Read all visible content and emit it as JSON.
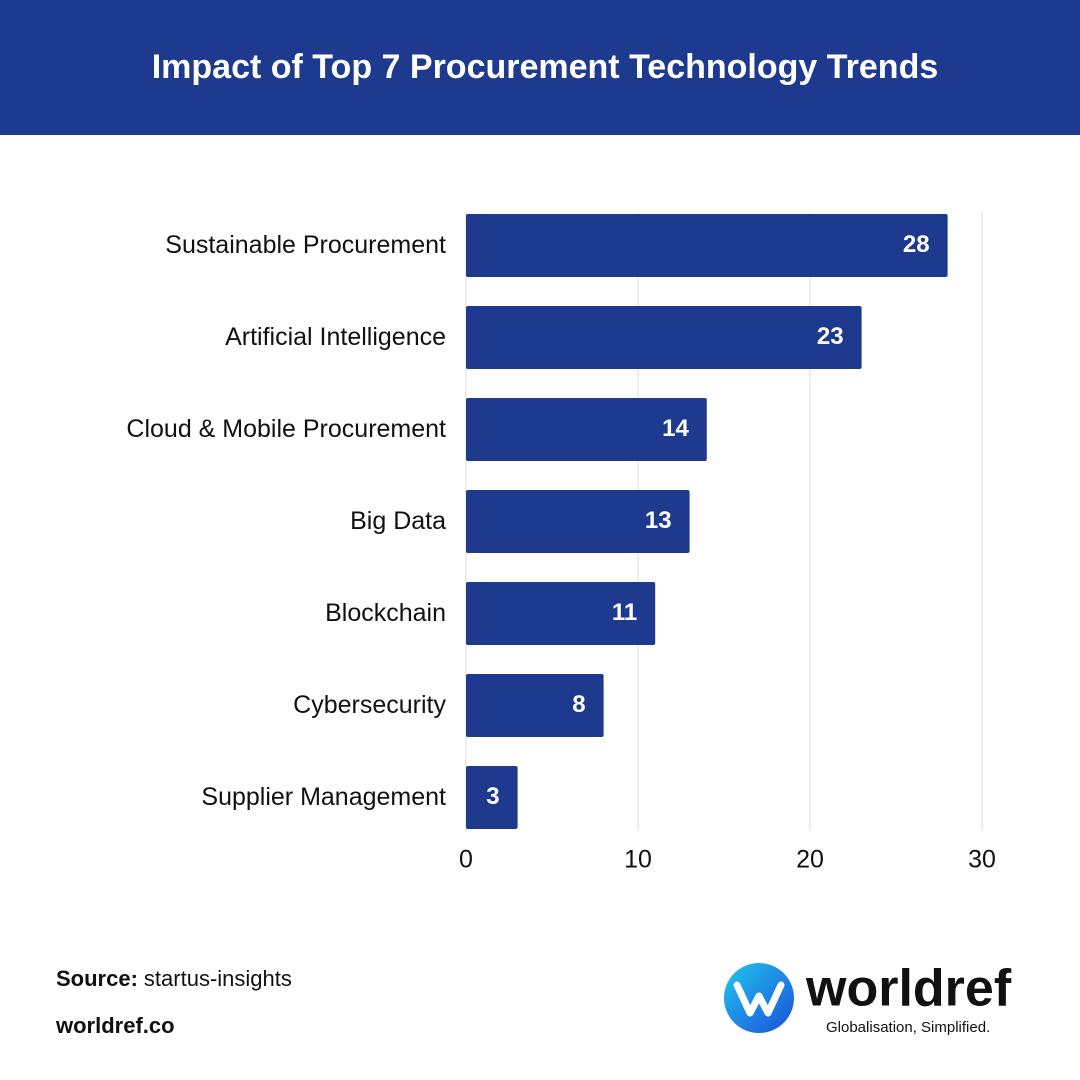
{
  "chart_data": {
    "type": "bar",
    "orientation": "horizontal",
    "title": "Impact of Top 7 Procurement Technology Trends",
    "categories": [
      "Sustainable Procurement",
      "Artificial Intelligence",
      "Cloud & Mobile Procurement",
      "Big Data",
      "Blockchain",
      "Cybersecurity",
      "Supplier Management"
    ],
    "values": [
      28,
      23,
      14,
      13,
      11,
      8,
      3
    ],
    "color": "#1e3a8f",
    "xlim": [
      0,
      30
    ],
    "xticks": [
      0,
      10,
      20,
      30
    ],
    "grid": true
  },
  "footer": {
    "source_label": "Source:",
    "source": "startus-insights",
    "website": "worldref.co"
  },
  "logo": {
    "name": "worldref",
    "tagline": "Globalisation, Simplified."
  }
}
